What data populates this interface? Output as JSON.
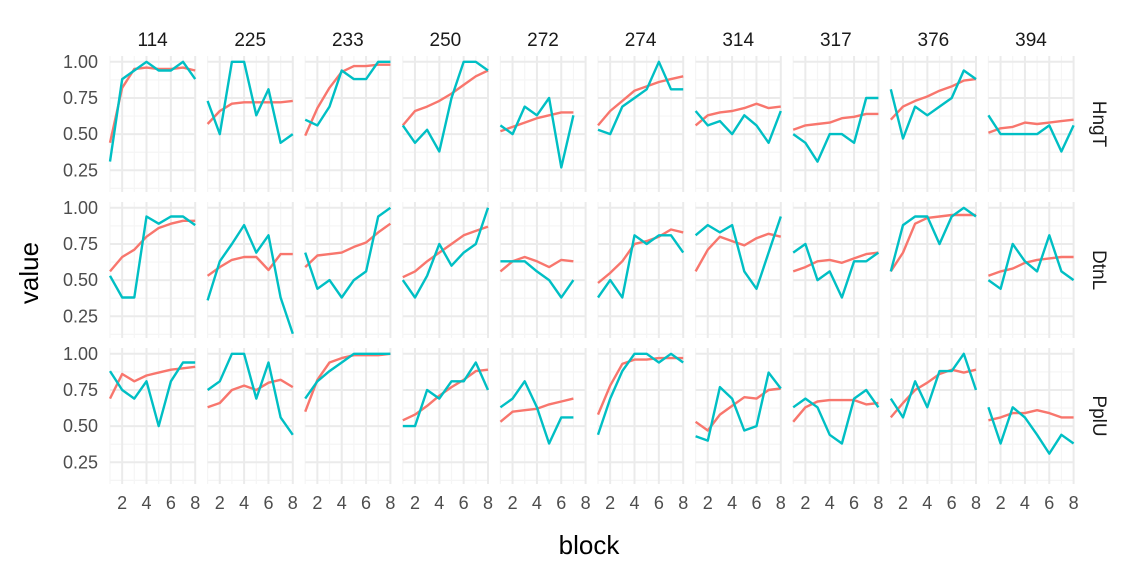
{
  "chart_data": {
    "type": "line",
    "xlabel": "block",
    "ylabel": "value",
    "x": [
      1,
      2,
      3,
      4,
      5,
      6,
      7,
      8
    ],
    "xlim": [
      1,
      8
    ],
    "ylim": [
      0.1,
      1.04
    ],
    "x_ticks": [
      2,
      4,
      6,
      8
    ],
    "y_ticks": [
      0.25,
      0.5,
      0.75,
      1.0
    ],
    "y_tick_labels": [
      "0.25",
      "0.50",
      "0.75",
      "1.00"
    ],
    "grid": true,
    "legend": "none",
    "colors": {
      "series_a": "#f8766d",
      "series_b": "#00bfc4",
      "grid_major": "#ebebeb",
      "grid_minor": "#f5f5f5"
    },
    "columns": [
      "114",
      "225",
      "233",
      "250",
      "272",
      "274",
      "314",
      "317",
      "376",
      "394"
    ],
    "rows": [
      "HngT",
      "DtnL",
      "PplU"
    ],
    "panels": {
      "HngT": [
        {
          "a": [
            0.44,
            0.82,
            0.95,
            0.96,
            0.95,
            0.95,
            0.96,
            0.94
          ],
          "b": [
            0.31,
            0.88,
            0.94,
            1.0,
            0.94,
            0.94,
            1.0,
            0.88
          ]
        },
        {
          "a": [
            0.57,
            0.66,
            0.71,
            0.72,
            0.72,
            0.72,
            0.72,
            0.73
          ],
          "b": [
            0.73,
            0.5,
            1.0,
            1.0,
            0.63,
            0.81,
            0.44,
            0.5
          ]
        },
        {
          "a": [
            0.49,
            0.68,
            0.82,
            0.93,
            0.97,
            0.97,
            0.98,
            0.98
          ],
          "b": [
            0.6,
            0.56,
            0.69,
            0.94,
            0.88,
            0.88,
            1.0,
            1.0
          ]
        },
        {
          "a": [
            0.56,
            0.66,
            0.69,
            0.73,
            0.78,
            0.84,
            0.9,
            0.94
          ],
          "b": [
            0.56,
            0.44,
            0.53,
            0.38,
            0.75,
            1.0,
            1.0,
            0.94
          ]
        },
        {
          "a": [
            0.52,
            0.55,
            0.58,
            0.61,
            0.63,
            0.65,
            0.65,
            null
          ],
          "b": [
            0.56,
            0.5,
            0.69,
            0.63,
            0.75,
            0.27,
            0.63,
            null
          ]
        },
        {
          "a": [
            0.56,
            0.66,
            0.73,
            0.8,
            0.83,
            0.86,
            0.88,
            0.9
          ],
          "b": [
            0.53,
            0.5,
            0.69,
            0.75,
            0.81,
            1.0,
            0.81,
            0.81
          ]
        },
        {
          "a": [
            0.56,
            0.63,
            0.65,
            0.66,
            0.68,
            0.71,
            0.68,
            0.69
          ],
          "b": [
            0.66,
            0.56,
            0.59,
            0.5,
            0.63,
            0.56,
            0.44,
            0.66
          ]
        },
        {
          "a": [
            0.53,
            0.56,
            0.57,
            0.58,
            0.61,
            0.62,
            0.64,
            0.64
          ],
          "b": [
            0.5,
            0.44,
            0.31,
            0.5,
            0.5,
            0.44,
            0.75,
            0.75
          ]
        },
        {
          "a": [
            0.6,
            0.69,
            0.73,
            0.76,
            0.8,
            0.83,
            0.87,
            0.88
          ],
          "b": [
            0.81,
            0.47,
            0.69,
            0.63,
            0.69,
            0.75,
            0.94,
            0.88
          ]
        },
        {
          "a": [
            0.51,
            0.54,
            0.55,
            0.58,
            0.57,
            0.58,
            0.59,
            0.6
          ],
          "b": [
            0.63,
            0.5,
            0.5,
            0.5,
            0.5,
            0.56,
            0.38,
            0.56
          ]
        }
      ],
      "DtnL": [
        {
          "a": [
            0.56,
            0.66,
            0.71,
            0.8,
            0.86,
            0.89,
            0.91,
            0.91
          ],
          "b": [
            0.53,
            0.38,
            0.38,
            0.94,
            0.89,
            0.94,
            0.94,
            0.88
          ]
        },
        {
          "a": [
            0.53,
            0.59,
            0.64,
            0.66,
            0.66,
            0.57,
            0.68,
            0.68
          ],
          "b": [
            0.36,
            0.63,
            0.75,
            0.88,
            0.69,
            0.81,
            0.38,
            0.13
          ]
        },
        {
          "a": [
            0.59,
            0.67,
            0.68,
            0.69,
            0.73,
            0.76,
            0.83,
            0.89
          ],
          "b": [
            0.69,
            0.44,
            0.5,
            0.38,
            0.5,
            0.56,
            0.94,
            1.0
          ]
        },
        {
          "a": [
            0.52,
            0.56,
            0.63,
            0.69,
            0.75,
            0.81,
            0.84,
            0.87
          ],
          "b": [
            0.5,
            0.38,
            0.53,
            0.75,
            0.6,
            0.69,
            0.75,
            1.0
          ]
        },
        {
          "a": [
            0.56,
            0.63,
            0.66,
            0.63,
            0.59,
            0.64,
            0.63,
            null
          ],
          "b": [
            0.63,
            0.63,
            0.63,
            0.56,
            0.5,
            0.38,
            0.5,
            null
          ]
        },
        {
          "a": [
            0.48,
            0.55,
            0.63,
            0.75,
            0.77,
            0.8,
            0.85,
            0.83
          ],
          "b": [
            0.38,
            0.5,
            0.38,
            0.81,
            0.75,
            0.81,
            0.81,
            0.69
          ]
        },
        {
          "a": [
            0.56,
            0.71,
            0.8,
            0.77,
            0.74,
            0.79,
            0.82,
            0.8
          ],
          "b": [
            0.81,
            0.88,
            0.83,
            0.88,
            0.56,
            0.44,
            0.69,
            0.94
          ]
        },
        {
          "a": [
            0.56,
            0.59,
            0.63,
            0.64,
            0.62,
            0.65,
            0.68,
            0.69
          ],
          "b": [
            0.69,
            0.75,
            0.5,
            0.56,
            0.38,
            0.63,
            0.63,
            0.69
          ]
        },
        {
          "a": [
            0.56,
            0.69,
            0.89,
            0.93,
            0.94,
            0.95,
            0.95,
            0.95
          ],
          "b": [
            0.56,
            0.88,
            0.94,
            0.94,
            0.75,
            0.94,
            1.0,
            0.94
          ]
        },
        {
          "a": [
            0.53,
            0.56,
            0.58,
            0.62,
            0.64,
            0.65,
            0.66,
            0.66
          ],
          "b": [
            0.5,
            0.44,
            0.75,
            0.63,
            0.56,
            0.81,
            0.56,
            0.5
          ]
        }
      ],
      "PplU": [
        {
          "a": [
            0.69,
            0.86,
            0.81,
            0.85,
            0.87,
            0.89,
            0.9,
            0.91
          ],
          "b": [
            0.88,
            0.75,
            0.69,
            0.81,
            0.5,
            0.81,
            0.94,
            0.94
          ]
        },
        {
          "a": [
            0.63,
            0.66,
            0.75,
            0.78,
            0.75,
            0.8,
            0.82,
            0.77
          ],
          "b": [
            0.75,
            0.81,
            1.0,
            1.0,
            0.69,
            0.94,
            0.56,
            0.44
          ]
        },
        {
          "a": [
            0.6,
            0.82,
            0.94,
            0.97,
            0.99,
            0.99,
            0.99,
            1.0
          ],
          "b": [
            0.69,
            0.81,
            0.88,
            0.94,
            1.0,
            1.0,
            1.0,
            1.0
          ]
        },
        {
          "a": [
            0.54,
            0.58,
            0.64,
            0.71,
            0.77,
            0.82,
            0.88,
            0.89
          ],
          "b": [
            0.5,
            0.5,
            0.75,
            0.69,
            0.81,
            0.81,
            0.94,
            0.75
          ]
        },
        {
          "a": [
            0.53,
            0.6,
            0.61,
            0.62,
            0.65,
            0.67,
            0.69,
            null
          ],
          "b": [
            0.63,
            0.69,
            0.81,
            0.63,
            0.38,
            0.56,
            0.56,
            null
          ]
        },
        {
          "a": [
            0.58,
            0.78,
            0.93,
            0.96,
            0.96,
            0.97,
            0.97,
            0.97
          ],
          "b": [
            0.44,
            0.69,
            0.88,
            1.0,
            1.0,
            0.94,
            1.0,
            0.94
          ]
        },
        {
          "a": [
            0.53,
            0.47,
            0.58,
            0.64,
            0.7,
            0.69,
            0.75,
            0.76
          ],
          "b": [
            0.43,
            0.4,
            0.77,
            0.69,
            0.47,
            0.5,
            0.87,
            0.76
          ]
        },
        {
          "a": [
            0.53,
            0.63,
            0.67,
            0.68,
            0.68,
            0.68,
            0.65,
            0.66
          ],
          "b": [
            0.63,
            0.69,
            0.63,
            0.44,
            0.38,
            0.69,
            0.75,
            0.63
          ]
        },
        {
          "a": [
            0.56,
            0.66,
            0.75,
            0.8,
            0.86,
            0.89,
            0.87,
            0.89
          ],
          "b": [
            0.69,
            0.56,
            0.81,
            0.63,
            0.88,
            0.88,
            1.0,
            0.75
          ]
        },
        {
          "a": [
            0.54,
            0.56,
            0.59,
            0.59,
            0.61,
            0.59,
            0.56,
            0.56
          ],
          "b": [
            0.63,
            0.38,
            0.63,
            0.56,
            0.44,
            0.31,
            0.44,
            0.38
          ]
        }
      ]
    }
  }
}
